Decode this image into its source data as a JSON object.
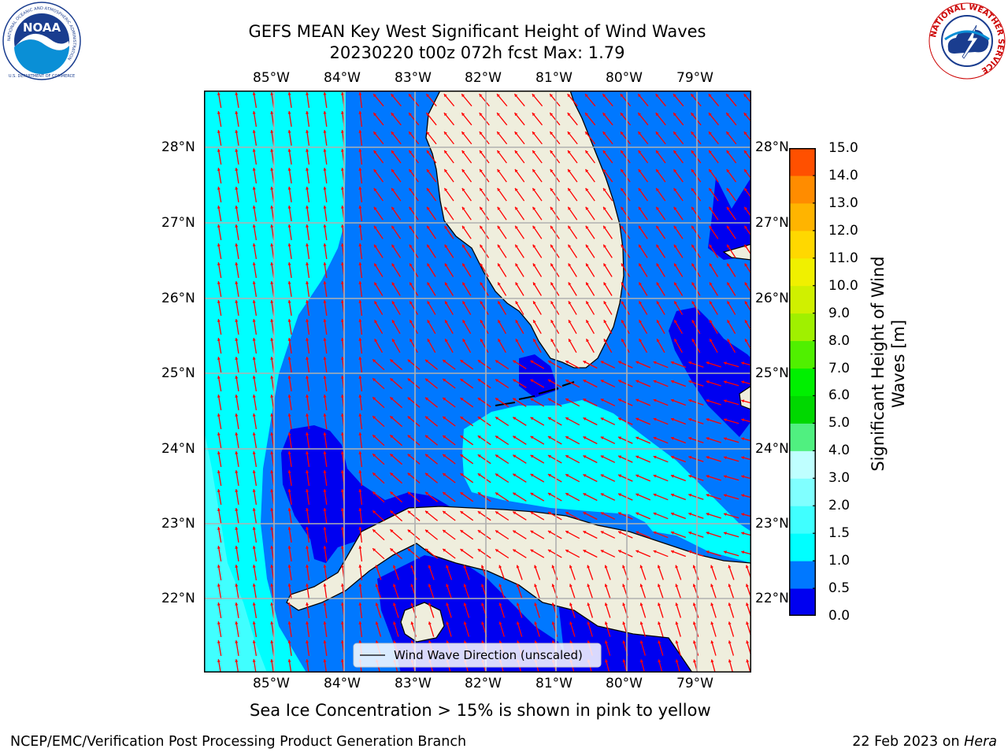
{
  "title_line1": "GEFS MEAN Key West Significant Height of Wind Waves",
  "title_line2": "20230220 t00z 072h fcst   Max: 1.79",
  "logos": {
    "left": {
      "text": "NOAA",
      "ring_text": "NATIONAL OCEANIC AND ATMOSPHERIC ADMINISTRATION",
      "bottom_text": "U.S. DEPARTMENT OF COMMERCE",
      "icon": "noaa-logo"
    },
    "right": {
      "ring_text": "NATIONAL WEATHER SERVICE",
      "icon": "nws-logo"
    }
  },
  "longitude_labels": [
    "85°W",
    "84°W",
    "83°W",
    "82°W",
    "81°W",
    "80°W",
    "79°W"
  ],
  "latitude_labels": [
    "28°N",
    "27°N",
    "26°N",
    "25°N",
    "24°N",
    "23°N",
    "22°N"
  ],
  "legend": {
    "label": "Wind Wave Direction (unscaled)"
  },
  "colorbar": {
    "title_line1": "Significant Height of Wind",
    "title_line2": "Waves [m]",
    "tick_labels": [
      "15.0",
      "14.0",
      "13.0",
      "12.0",
      "11.0",
      "10.0",
      "9.0",
      "8.0",
      "7.0",
      "6.0",
      "5.0",
      "4.0",
      "3.0",
      "2.0",
      "1.5",
      "1.0",
      "0.5",
      "0.0"
    ],
    "colors_bottom_to_top": [
      "#0000f0",
      "#0078ff",
      "#00ffff",
      "#40ffff",
      "#80ffff",
      "#bfffff",
      "#50f080",
      "#00d800",
      "#00f000",
      "#50f000",
      "#a0f000",
      "#d0f000",
      "#f0f000",
      "#ffd800",
      "#ffb400",
      "#ff8c00",
      "#ff5000",
      "#ff2800",
      "#ff0000"
    ]
  },
  "map": {
    "extent_lon": [
      -86.0,
      -78.25
    ],
    "extent_lat": [
      21.0,
      28.75
    ],
    "land_color": "#efeedd",
    "vector_color": "#ff0000",
    "grid_color": "#b0b0b0"
  },
  "caption": "Sea Ice Concentration > 15% is shown in pink to yellow",
  "footer_left": "NCEP/EMC/Verification Post Processing Product Generation Branch",
  "footer_right_date": "22 Feb 2023 on",
  "footer_right_host": "Hera"
}
